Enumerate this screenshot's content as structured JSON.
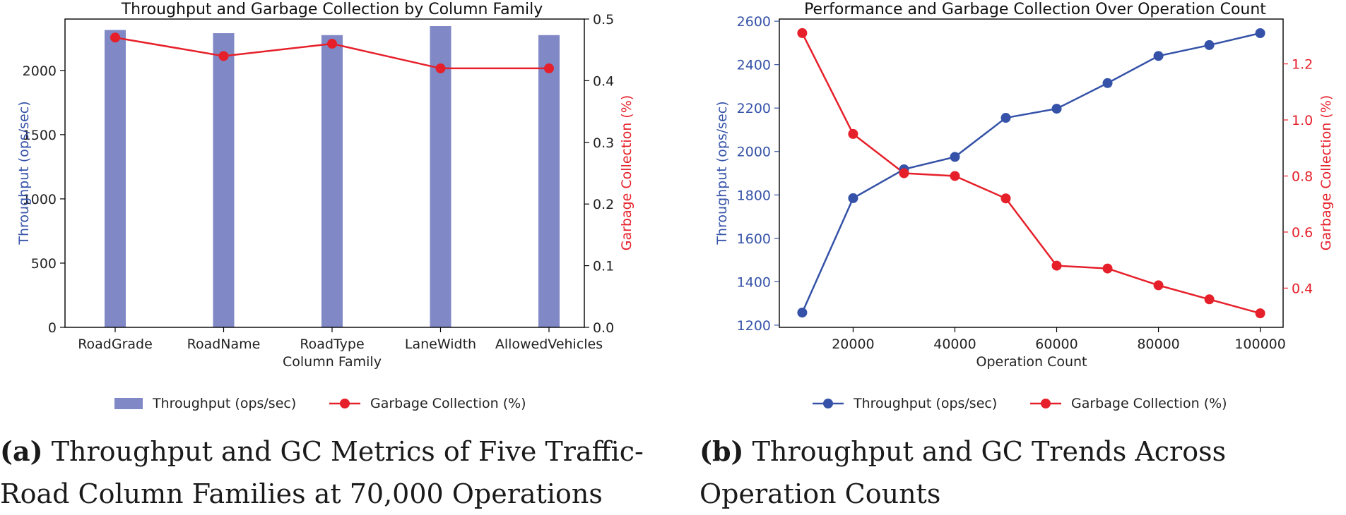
{
  "colors": {
    "bar": "#8088c6",
    "red": "#e6202a",
    "blue": "#3552a8"
  },
  "captions": {
    "a": {
      "tag": "(a)",
      "text": "Throughput and GC Metrics of Five Traffic-Road Column Families at 70,000 Operations"
    },
    "b": {
      "tag": "(b)",
      "text": "Throughput and GC Trends Across Operation Counts"
    }
  },
  "chart_data": [
    {
      "type": "bar",
      "title": "Throughput and Garbage Collection by Column Family",
      "xlabel": "Column Family",
      "ylabel": "Throughput (ops/sec)",
      "y2label": "Garbage Collection (%)",
      "categories": [
        "RoadGrade",
        "RoadName",
        "RoadType",
        "LaneWidth",
        "AllowedVehicles"
      ],
      "series": [
        {
          "name": "Throughput (ops/sec)",
          "kind": "bar",
          "axis": "left",
          "values": [
            2315,
            2290,
            2275,
            2345,
            2275
          ]
        },
        {
          "name": "Garbage Collection (%)",
          "kind": "line",
          "axis": "right",
          "values": [
            0.47,
            0.44,
            0.46,
            0.42,
            0.42
          ]
        }
      ],
      "ylim": [
        0,
        2400
      ],
      "y2lim": [
        0,
        0.5
      ],
      "yticks": [
        0,
        500,
        1000,
        1500,
        2000
      ],
      "y2ticks": [
        0.0,
        0.1,
        0.2,
        0.3,
        0.4,
        0.5
      ],
      "ytick_labels": [
        "0",
        "500",
        "1000",
        "1500",
        "2000"
      ],
      "y2tick_labels": [
        "0.0",
        "0.1",
        "0.2",
        "0.3",
        "0.4",
        "0.5"
      ],
      "legend": "bottom-center"
    },
    {
      "type": "line",
      "title": "Performance and Garbage Collection Over Operation Count",
      "xlabel": "Operation Count",
      "ylabel": "Throughput (ops/sec)",
      "y2label": "Garbage Collection (%)",
      "x": [
        10000,
        20000,
        30000,
        40000,
        50000,
        60000,
        70000,
        80000,
        90000,
        100000
      ],
      "series": [
        {
          "name": "Throughput (ops/sec)",
          "axis": "left",
          "values": [
            1258,
            1785,
            1918,
            1975,
            2155,
            2197,
            2315,
            2440,
            2490,
            2545
          ]
        },
        {
          "name": "Garbage Collection (%)",
          "axis": "right",
          "values": [
            1.31,
            0.95,
            0.81,
            0.8,
            0.72,
            0.48,
            0.47,
            0.41,
            0.36,
            0.31
          ]
        }
      ],
      "xlim": [
        5500,
        104500
      ],
      "ylim": [
        1190,
        2610
      ],
      "y2lim": [
        0.26,
        1.36
      ],
      "xticks": [
        20000,
        40000,
        60000,
        80000,
        100000
      ],
      "xtick_labels": [
        "20000",
        "40000",
        "60000",
        "80000",
        "100000"
      ],
      "yticks": [
        1200,
        1400,
        1600,
        1800,
        2000,
        2200,
        2400,
        2600
      ],
      "ytick_labels": [
        "1200",
        "1400",
        "1600",
        "1800",
        "2000",
        "2200",
        "2400",
        "2600"
      ],
      "y2ticks": [
        0.4,
        0.6,
        0.8,
        1.0,
        1.2
      ],
      "y2tick_labels": [
        "0.4",
        "0.6",
        "0.8",
        "1.0",
        "1.2"
      ],
      "legend": "bottom-center"
    }
  ]
}
